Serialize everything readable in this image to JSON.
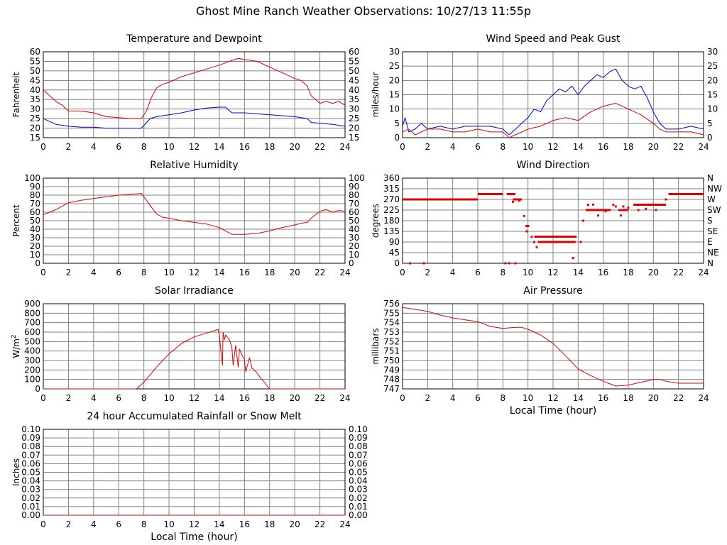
{
  "page": {
    "title": "Ghost Mine Ranch Weather Observations: 10/27/13 11:55p"
  },
  "colors": {
    "red": "#e00000",
    "blue": "#0000d0",
    "grid": "#808080",
    "axis": "#000000"
  },
  "chart_data": [
    {
      "id": "temp",
      "type": "line",
      "title": "Temperature and Dewpoint",
      "xlabel": "",
      "ylabel": "Fahrenheit",
      "xlim": [
        0,
        24
      ],
      "ylim": [
        15,
        60
      ],
      "xticks": [
        0,
        2,
        4,
        6,
        8,
        10,
        12,
        14,
        16,
        18,
        20,
        22,
        24
      ],
      "yticks": [
        15,
        20,
        25,
        30,
        35,
        40,
        45,
        50,
        55,
        60
      ],
      "right_ticks": [
        "15",
        "20",
        "25",
        "30",
        "35",
        "40",
        "45",
        "50",
        "55",
        "60"
      ],
      "grid": true,
      "series": [
        {
          "color": "#e00000",
          "x": [
            0,
            0.5,
            1,
            1.5,
            2,
            3,
            4,
            5,
            6,
            7,
            7.8,
            8.2,
            8.6,
            9,
            9.5,
            10,
            11,
            12,
            13,
            14,
            15,
            15.5,
            16,
            17,
            18,
            19,
            20,
            20.5,
            21,
            21.3,
            22,
            22.5,
            23,
            23.5,
            24
          ],
          "y": [
            40,
            37,
            34,
            32,
            29,
            29,
            28,
            26,
            25.5,
            25,
            25,
            29,
            36,
            41,
            43,
            44,
            47,
            49,
            51,
            53,
            55.5,
            56.5,
            56,
            55,
            52,
            49,
            46,
            45,
            42,
            37,
            33,
            34,
            33,
            34,
            32
          ]
        },
        {
          "color": "#0000d0",
          "x": [
            0,
            1,
            2,
            3,
            4,
            5,
            6,
            7,
            7.8,
            8.5,
            9,
            10,
            11,
            12,
            13,
            14,
            14.5,
            15,
            16,
            17,
            18,
            19,
            20,
            21,
            21.3,
            22,
            23,
            24
          ],
          "y": [
            25,
            22,
            21,
            20.5,
            20.5,
            20,
            20,
            20,
            20,
            25,
            26,
            27,
            28,
            29.5,
            30.5,
            31,
            31,
            28,
            28,
            27.5,
            27,
            26.5,
            26,
            25,
            23,
            22.5,
            22,
            21
          ]
        }
      ]
    },
    {
      "id": "wind",
      "type": "line",
      "title": "Wind Speed and Peak Gust",
      "xlabel": "",
      "ylabel": "miles/hour",
      "xlim": [
        0,
        24
      ],
      "ylim": [
        0,
        30
      ],
      "xticks": [
        0,
        2,
        4,
        6,
        8,
        10,
        12,
        14,
        16,
        18,
        20,
        22,
        24
      ],
      "yticks": [
        0,
        5,
        10,
        15,
        20,
        25,
        30
      ],
      "right_ticks": [
        "0",
        "5",
        "10",
        "15",
        "20",
        "25",
        "30"
      ],
      "grid": true,
      "series": [
        {
          "color": "#0000d0",
          "x": [
            0,
            0.2,
            0.5,
            1,
            1.5,
            2,
            3,
            4,
            5,
            6,
            7,
            8,
            8.5,
            9,
            9.5,
            10,
            10.5,
            11,
            11.5,
            12,
            12.5,
            13,
            13.5,
            14,
            14.5,
            15,
            15.5,
            16,
            16.5,
            17,
            17.5,
            18,
            18.5,
            19,
            19.5,
            20,
            20.5,
            21,
            22,
            23,
            24
          ],
          "y": [
            4,
            7,
            2,
            3,
            5,
            3,
            4,
            3,
            4,
            4,
            4,
            3,
            1,
            3,
            5,
            7,
            10,
            9,
            13,
            15,
            17,
            16,
            18,
            15,
            18,
            20,
            22,
            21,
            23,
            24,
            20,
            18,
            17,
            18,
            14,
            9,
            5,
            3,
            3,
            4,
            3
          ]
        },
        {
          "color": "#e00000",
          "x": [
            0,
            0.5,
            1,
            2,
            3,
            4,
            5,
            6,
            7,
            8,
            8.5,
            9,
            10,
            11,
            12,
            13,
            14,
            15,
            16,
            17,
            17.5,
            18,
            19,
            20,
            20.5,
            21,
            22,
            23,
            24
          ],
          "y": [
            2,
            3,
            1,
            3,
            3,
            2,
            2,
            3,
            2,
            2,
            0,
            1,
            3,
            4,
            6,
            7,
            6,
            9,
            11,
            12,
            11,
            10,
            8,
            5,
            3,
            2,
            2,
            2,
            1
          ]
        }
      ]
    },
    {
      "id": "rh",
      "type": "line",
      "title": "Relative Humidity",
      "xlabel": "",
      "ylabel": "Percent",
      "xlim": [
        0,
        24
      ],
      "ylim": [
        0,
        100
      ],
      "xticks": [
        0,
        2,
        4,
        6,
        8,
        10,
        12,
        14,
        16,
        18,
        20,
        22,
        24
      ],
      "yticks": [
        0,
        10,
        20,
        30,
        40,
        50,
        60,
        70,
        80,
        90,
        100
      ],
      "right_ticks": [
        "0",
        "10",
        "20",
        "30",
        "40",
        "50",
        "60",
        "70",
        "80",
        "90",
        "100"
      ],
      "grid": true,
      "series": [
        {
          "color": "#e00000",
          "x": [
            0,
            0.5,
            1,
            1.5,
            2,
            3,
            4,
            5,
            6,
            7,
            7.8,
            8,
            8.5,
            9,
            9.5,
            10,
            11,
            12,
            13,
            14,
            14.5,
            15,
            16,
            17,
            18,
            19,
            20,
            20.5,
            21,
            21.3,
            22,
            22.5,
            23,
            23.5,
            24
          ],
          "y": [
            57,
            60,
            63,
            67,
            71,
            74,
            76,
            78,
            80,
            81,
            82,
            78,
            68,
            58,
            54,
            53,
            50,
            48,
            46,
            42,
            38,
            34,
            34,
            35,
            38,
            42,
            45,
            47,
            48,
            53,
            61,
            63,
            60,
            62,
            61
          ]
        }
      ]
    },
    {
      "id": "dir",
      "type": "scatter",
      "title": "Wind Direction",
      "xlabel": "",
      "ylabel": "degrees",
      "xlim": [
        0,
        24
      ],
      "ylim": [
        0,
        360
      ],
      "xticks": [
        0,
        2,
        4,
        6,
        8,
        10,
        12,
        14,
        16,
        18,
        20,
        22,
        24
      ],
      "yticks": [
        0,
        45,
        90,
        135,
        180,
        225,
        270,
        315,
        360
      ],
      "right_ticks": [
        "N",
        "NE",
        "E",
        "SE",
        "S",
        "SW",
        "W",
        "NW",
        "N"
      ],
      "grid": true,
      "segments": [
        {
          "x0": 0,
          "x1": 6,
          "y": 270
        },
        {
          "x0": 6,
          "x1": 8,
          "y": 292.5
        },
        {
          "x0": 8.3,
          "x1": 9,
          "y": 292.5
        },
        {
          "x0": 8.8,
          "x1": 9.5,
          "y": 270
        },
        {
          "x0": 9.8,
          "x1": 10.1,
          "y": 157.5
        },
        {
          "x0": 10.5,
          "x1": 11,
          "y": 112.5
        },
        {
          "x0": 11,
          "x1": 13.8,
          "y": 112.5
        },
        {
          "x0": 10.8,
          "x1": 13.8,
          "y": 90
        },
        {
          "x0": 14.6,
          "x1": 16.6,
          "y": 225
        },
        {
          "x0": 17.2,
          "x1": 18,
          "y": 225
        },
        {
          "x0": 18.4,
          "x1": 21,
          "y": 247.5
        },
        {
          "x0": 21.2,
          "x1": 24,
          "y": 292.5
        }
      ],
      "points": {
        "x": [
          0.6,
          1.7,
          8.2,
          8.5,
          9,
          8.8,
          9.3,
          9.7,
          9.9,
          10.3,
          10.5,
          10.7,
          11.5,
          13.6,
          13.8,
          14.2,
          14.4,
          14.8,
          15.2,
          15.6,
          16.2,
          16.8,
          17,
          17.4,
          17.6,
          18,
          18.8,
          19.4,
          20.2,
          20.6,
          21
        ],
        "y": [
          0,
          0,
          0,
          0,
          0,
          260,
          265,
          200,
          135,
          112,
          90,
          68,
          90,
          22,
          112,
          90,
          180,
          247,
          248,
          202,
          220,
          247,
          240,
          202,
          240,
          235,
          225,
          230,
          225,
          247,
          270
        ]
      }
    },
    {
      "id": "solar",
      "type": "line",
      "title": "Solar Irradiance",
      "xlabel": "",
      "ylabel": "W/m2",
      "xlim": [
        0,
        24
      ],
      "ylim": [
        0,
        900
      ],
      "xticks": [
        0,
        2,
        4,
        6,
        8,
        10,
        12,
        14,
        16,
        18,
        20,
        22,
        24
      ],
      "yticks": [
        0,
        100,
        200,
        300,
        400,
        500,
        600,
        700,
        800,
        900
      ],
      "right_ticks": [],
      "grid": true,
      "series": [
        {
          "color": "#e00000",
          "x": [
            0,
            7.4,
            8,
            9,
            10,
            11,
            12,
            13,
            13.5,
            13.9,
            14,
            14.1,
            14.25,
            14.3,
            14.4,
            14.5,
            14.8,
            15,
            15.1,
            15.3,
            15.5,
            15.6,
            15.8,
            16,
            16.1,
            16.4,
            16.6,
            17,
            17.3,
            17.6,
            17.8,
            18,
            24
          ],
          "y": [
            0,
            0,
            70,
            230,
            370,
            480,
            550,
            590,
            610,
            630,
            580,
            430,
            250,
            600,
            520,
            570,
            520,
            440,
            250,
            460,
            230,
            420,
            360,
            310,
            180,
            330,
            220,
            170,
            110,
            70,
            30,
            0,
            0
          ]
        }
      ]
    },
    {
      "id": "pres",
      "type": "line",
      "title": "Air Pressure",
      "xlabel": "Local Time (hour)",
      "ylabel": "millibars",
      "xlim": [
        0,
        24
      ],
      "ylim": [
        747,
        756
      ],
      "xticks": [
        0,
        2,
        4,
        6,
        8,
        10,
        12,
        14,
        16,
        18,
        20,
        22,
        24
      ],
      "yticks": [
        747,
        748,
        749,
        750,
        751,
        752,
        753,
        754,
        755,
        756
      ],
      "right_ticks": [],
      "grid": true,
      "series": [
        {
          "color": "#e00000",
          "x": [
            0,
            1,
            2,
            3,
            4,
            5,
            6,
            7,
            8,
            9,
            9.5,
            10,
            11,
            12,
            13,
            14,
            15,
            16,
            17,
            18,
            19,
            20,
            20.5,
            21,
            22,
            23,
            24
          ],
          "y": [
            755.6,
            755.4,
            755.2,
            754.8,
            754.5,
            754.3,
            754.1,
            753.6,
            753.4,
            753.5,
            753.5,
            753.3,
            752.7,
            751.8,
            750.5,
            749.1,
            748.4,
            747.8,
            747.3,
            747.4,
            747.7,
            748.0,
            748.0,
            747.8,
            747.6,
            747.6,
            747.6
          ]
        }
      ]
    },
    {
      "id": "rain",
      "type": "line",
      "title": "24 hour Accumulated Rainfall or Snow Melt",
      "xlabel": "Local Time (hour)",
      "ylabel": "Inches",
      "xlim": [
        0,
        24
      ],
      "ylim": [
        0,
        0.1
      ],
      "xticks": [
        0,
        2,
        4,
        6,
        8,
        10,
        12,
        14,
        16,
        18,
        20,
        22,
        24
      ],
      "yticks": [
        "0.00",
        "0.01",
        "0.02",
        "0.03",
        "0.04",
        "0.05",
        "0.06",
        "0.07",
        "0.08",
        "0.09",
        "0.10"
      ],
      "right_ticks": [
        "0.00",
        "0.01",
        "0.02",
        "0.03",
        "0.04",
        "0.05",
        "0.06",
        "0.07",
        "0.08",
        "0.09",
        "0.10"
      ],
      "grid": true,
      "series": [
        {
          "color": "#e00000",
          "x": [
            0,
            24
          ],
          "y": [
            0,
            0
          ]
        }
      ]
    }
  ]
}
